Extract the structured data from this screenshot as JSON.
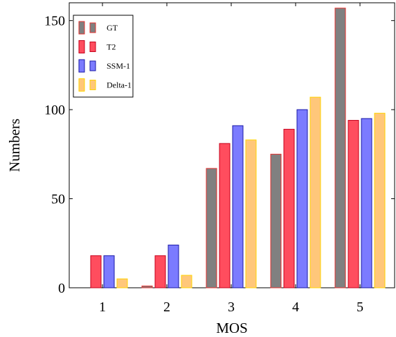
{
  "chart_data": {
    "type": "bar",
    "xlabel": "MOS",
    "ylabel": "Numbers",
    "categories": [
      "1",
      "2",
      "3",
      "4",
      "5"
    ],
    "ylim": [
      0,
      160
    ],
    "yticks": [
      0,
      50,
      100,
      150
    ],
    "grid": false,
    "legend_position": "top-left",
    "series": [
      {
        "name": "GT",
        "values": [
          0,
          1,
          67,
          75,
          157
        ],
        "fill": "#808080",
        "stroke": "#e5302e"
      },
      {
        "name": "T2",
        "values": [
          18,
          18,
          81,
          89,
          94
        ],
        "fill": "#ff4d5e",
        "stroke": "#c4001a"
      },
      {
        "name": "SSM-1",
        "values": [
          18,
          24,
          91,
          100,
          95
        ],
        "fill": "#7b7bff",
        "stroke": "#1a1aa6"
      },
      {
        "name": "Delta-1",
        "values": [
          5,
          7,
          83,
          107,
          98
        ],
        "fill": "#ffc77a",
        "stroke": "#ffd300"
      }
    ]
  }
}
